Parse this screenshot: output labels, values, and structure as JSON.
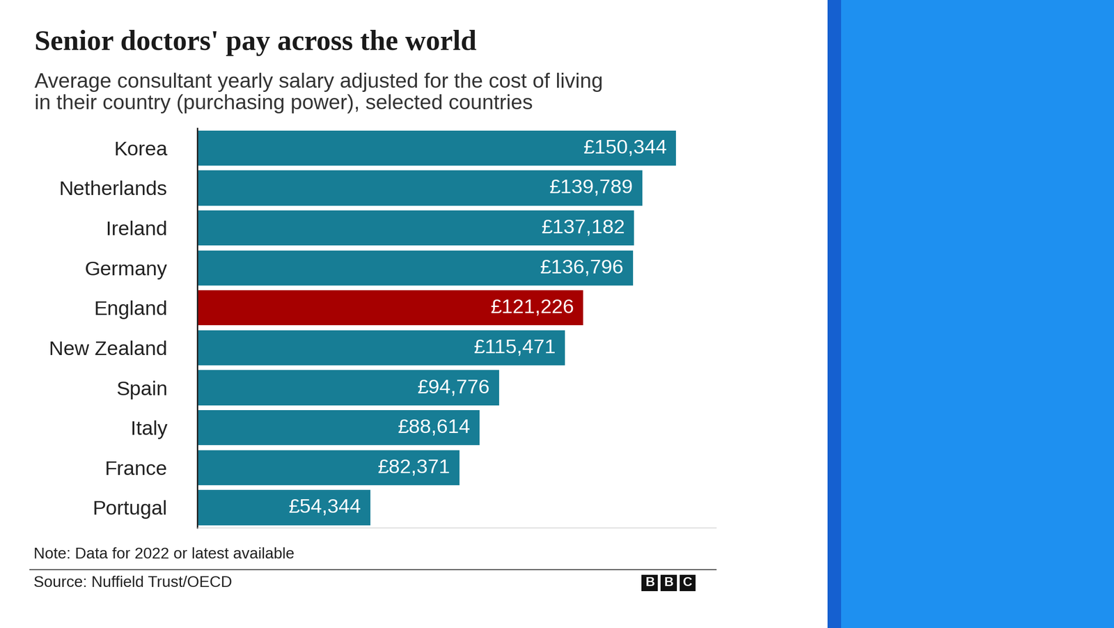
{
  "chart_data": {
    "type": "bar",
    "orientation": "horizontal",
    "title": "Senior doctors' pay across the world",
    "subtitle": "Average consultant yearly salary adjusted for the cost of living\nin their country (purchasing power), selected countries",
    "categories": [
      "Korea",
      "Netherlands",
      "Ireland",
      "Germany",
      "England",
      "New Zealand",
      "Spain",
      "Italy",
      "France",
      "Portugal"
    ],
    "values": [
      150344,
      139789,
      137182,
      136796,
      121226,
      115471,
      94776,
      88614,
      82371,
      54344
    ],
    "value_labels": [
      "£150,344",
      "£139,789",
      "£137,182",
      "£136,796",
      "£121,226",
      "£115,471",
      "£94,776",
      "£88,614",
      "£82,371",
      "£54,344"
    ],
    "colors": [
      "#177d95",
      "#177d95",
      "#177d95",
      "#177d95",
      "#a60000",
      "#177d95",
      "#177d95",
      "#177d95",
      "#177d95",
      "#177d95"
    ],
    "xlim": [
      0,
      163000
    ],
    "data_labels": true,
    "tick_labels": "y",
    "grid": false,
    "note": "Note: Data for 2022 or latest available",
    "source": "Source: Nuffield Trust/OECD",
    "logo": "BBC"
  }
}
